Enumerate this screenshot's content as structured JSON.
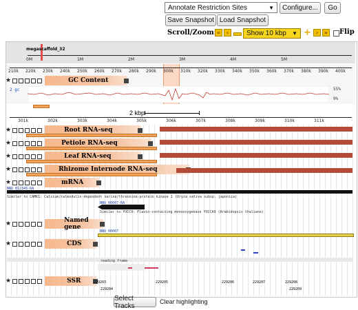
{
  "toolbar": {
    "plugin_select": "Annotate Restriction Sites",
    "configure_label": "Configure...",
    "go_label": "Go",
    "save_snapshot_label": "Save Snapshot",
    "load_snapshot_label": "Load Snapshot",
    "scroll_zoom_label": "Scroll/Zoom:",
    "zoom_select": "Show 10 kbp",
    "flip_label": "Flip"
  },
  "overview": {
    "contig_label": "megascaffold_32",
    "ticks": [
      "0M",
      "1M",
      "2M",
      "3M",
      "4M",
      "5M"
    ]
  },
  "region": {
    "ticks": [
      "210k",
      "220k",
      "230k",
      "240k",
      "250k",
      "260k",
      "270k",
      "280k",
      "290k",
      "300k",
      "310k",
      "320k",
      "330k",
      "340k",
      "350k",
      "360k",
      "370k",
      "380k",
      "390k",
      "400k"
    ]
  },
  "gc": {
    "track_label": "GC Content",
    "y_left": "2 gc",
    "y_right_top": "55%",
    "y_right_bottom": "9%"
  },
  "detail": {
    "scale_label": "2 kbp",
    "ticks": [
      "301k",
      "302k",
      "303k",
      "304k",
      "305k",
      "306k",
      "307k",
      "308k",
      "309k",
      "310k",
      "311k"
    ]
  },
  "tracks": {
    "root": "Root RNA-seq",
    "petiole": "Petiole RNA-seq",
    "leaf": "Leaf RNA-seq",
    "rhizome": "Rhizome Internode RNA-seq",
    "mrna": "mRNA",
    "named_gene": "Named gene",
    "cds": "CDS",
    "ssr": "SSR"
  },
  "features": {
    "mrna_id": "NNU_012345-RA",
    "mrna_desc": "Similar to CAMK1: Calcium/calmodulin-dependent serine/threonine-protein kinase 1 (Oryza sativa subsp. japonica)",
    "mrna2_id": "NNU_00007-RA",
    "mrna2_desc": "Similar to YUCC9: Flavin-containing monooxygenase YUCCA9 (Arabidopsis thaliana)",
    "named_gene_id": "NNU_00007",
    "cds_frame": "reading frame"
  },
  "ssr": {
    "row1": [
      "229203",
      "229205",
      "229206",
      "229207",
      "229208"
    ],
    "row2": [
      "229204",
      "229209"
    ]
  },
  "footer": {
    "select_tracks_label": "Select Tracks",
    "clear_highlighting_label": "Clear highlighting"
  }
}
